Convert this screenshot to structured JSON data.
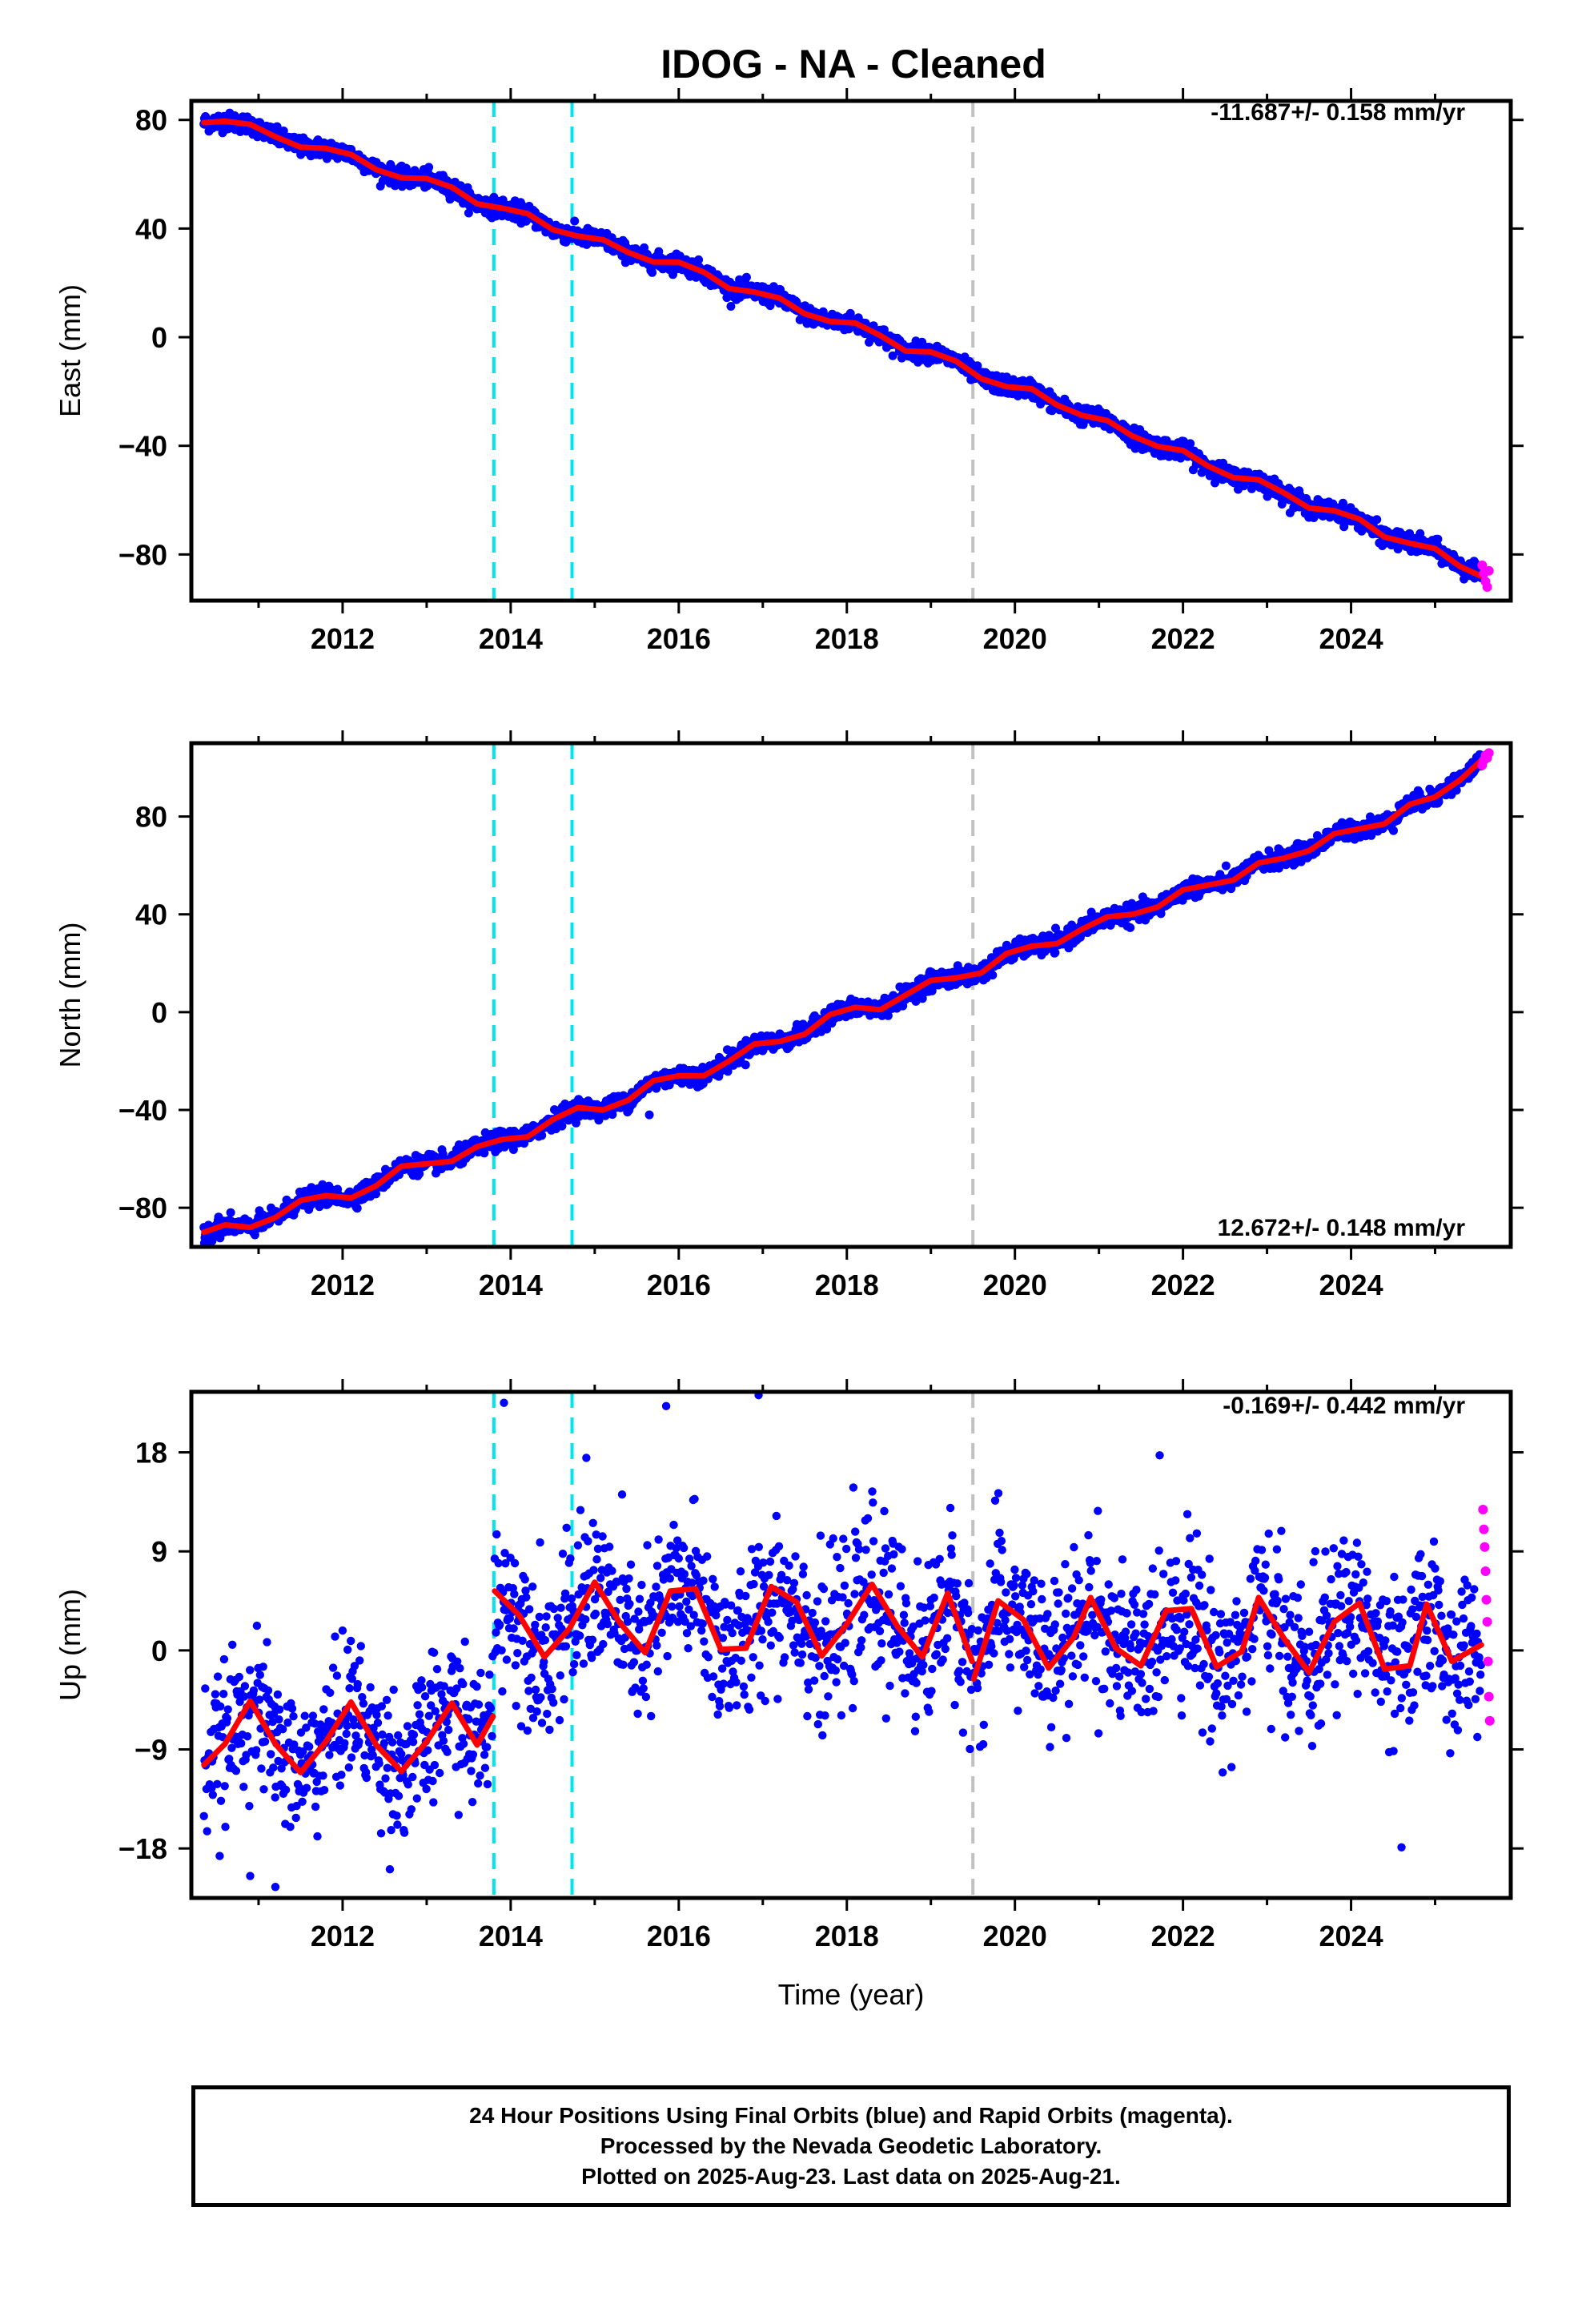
{
  "title": "IDOG  - NA - Cleaned",
  "footer": {
    "line1": "24 Hour Positions Using Final Orbits (blue) and Rapid Orbits (magenta).",
    "line2": "Processed by the Nevada Geodetic Laboratory.",
    "line3": "Plotted on 2025-Aug-23. Last data on 2025-Aug-21."
  },
  "colors": {
    "final": "#0000ff",
    "rapid": "#ff00ff",
    "model": "#ff0000",
    "eq_event": "#00e5ee",
    "equip_event": "#c0c0c0"
  },
  "chart_data": [
    {
      "type": "scatter",
      "component": "east",
      "ylabel": "East (mm)",
      "rate_text": "-11.687+/- 0.158 mm/yr",
      "xlim": [
        2010.2,
        2025.9
      ],
      "ylim": [
        -97,
        87
      ],
      "xticks": [
        2012,
        2014,
        2016,
        2018,
        2020,
        2022,
        2024
      ],
      "yticks": [
        -80,
        -40,
        0,
        40,
        80
      ],
      "ytick_labels": [
        "−80",
        "−40",
        "0",
        "40",
        "80"
      ],
      "events": [
        {
          "x": 2013.8,
          "kind": "eq"
        },
        {
          "x": 2014.73,
          "kind": "eq"
        },
        {
          "x": 2019.5,
          "kind": "equip"
        }
      ],
      "model_line": {
        "x": [
          2010.35,
          2010.6,
          2010.9,
          2011.2,
          2011.5,
          2011.8,
          2012.1,
          2012.4,
          2012.7,
          2013.0,
          2013.3,
          2013.6,
          2013.9,
          2014.2,
          2014.5,
          2014.8,
          2015.1,
          2015.4,
          2015.7,
          2016.0,
          2016.3,
          2016.6,
          2016.9,
          2017.2,
          2017.5,
          2017.8,
          2018.1,
          2018.4,
          2018.7,
          2019.0,
          2019.3,
          2019.6,
          2019.9,
          2020.2,
          2020.5,
          2020.8,
          2021.1,
          2021.4,
          2021.7,
          2022.0,
          2022.3,
          2022.6,
          2022.9,
          2023.2,
          2023.5,
          2023.8,
          2024.1,
          2024.4,
          2024.7,
          2025.0,
          2025.3,
          2025.55
        ],
        "y": [
          79,
          79.5,
          78.4,
          73.8,
          70,
          69.5,
          67.3,
          61.7,
          58.7,
          58.4,
          55.2,
          49.1,
          47.5,
          45.5,
          39.6,
          37.2,
          35.9,
          31.2,
          27.7,
          27.6,
          23.9,
          17.9,
          16.6,
          14.4,
          8.6,
          5.8,
          5.2,
          0.6,
          -5.1,
          -5.4,
          -8.8,
          -15.3,
          -18.2,
          -19,
          -25,
          -28.8,
          -30.7,
          -36.4,
          -40.2,
          -41.7,
          -47.5,
          -51.7,
          -52.5,
          -57.3,
          -62.9,
          -63.9,
          -67,
          -73.6,
          -75.9,
          -77.8,
          -84.5,
          -88
        ]
      },
      "scatter_sd": 1.6,
      "rapid_points": {
        "x": [
          2025.56,
          2025.58,
          2025.6,
          2025.62,
          2025.64
        ],
        "y": [
          -84,
          -87,
          -90,
          -92,
          -86
        ]
      }
    },
    {
      "type": "scatter",
      "component": "north",
      "ylabel": "North (mm)",
      "rate_text": "12.672+/- 0.148 mm/yr",
      "xlim": [
        2010.2,
        2025.9
      ],
      "ylim": [
        -96,
        110
      ],
      "xticks": [
        2012,
        2014,
        2016,
        2018,
        2020,
        2022,
        2024
      ],
      "yticks": [
        -80,
        -40,
        0,
        40,
        80
      ],
      "ytick_labels": [
        "−80",
        "−40",
        "0",
        "40",
        "80"
      ],
      "events": [
        {
          "x": 2013.8,
          "kind": "eq"
        },
        {
          "x": 2014.73,
          "kind": "eq"
        },
        {
          "x": 2019.5,
          "kind": "equip"
        }
      ],
      "model_line": {
        "x": [
          2010.35,
          2010.6,
          2010.9,
          2011.2,
          2011.5,
          2011.8,
          2012.1,
          2012.4,
          2012.7,
          2013.0,
          2013.3,
          2013.6,
          2013.9,
          2014.2,
          2014.5,
          2014.8,
          2015.1,
          2015.4,
          2015.7,
          2016.0,
          2016.3,
          2016.6,
          2016.9,
          2017.2,
          2017.5,
          2017.8,
          2018.1,
          2018.4,
          2018.7,
          2019.0,
          2019.3,
          2019.6,
          2019.9,
          2020.2,
          2020.5,
          2020.8,
          2021.1,
          2021.4,
          2021.7,
          2022.0,
          2022.3,
          2022.6,
          2022.9,
          2023.2,
          2023.5,
          2023.8,
          2024.1,
          2024.4,
          2024.7,
          2025.0,
          2025.3,
          2025.55
        ],
        "y": [
          -90,
          -87,
          -88,
          -84,
          -77,
          -75,
          -76,
          -71,
          -63,
          -62,
          -61,
          -55,
          -52,
          -51,
          -44,
          -39,
          -40,
          -36,
          -28,
          -26,
          -26,
          -20,
          -13,
          -12,
          -9,
          -1,
          2,
          1,
          7,
          13,
          14,
          16,
          24,
          27,
          28,
          34,
          39,
          40,
          43,
          50,
          52,
          54,
          61,
          63,
          66,
          73,
          75,
          77,
          85,
          88,
          95,
          103
        ]
      },
      "scatter_sd": 1.8,
      "outliers": [
        {
          "x": 2015.65,
          "y": -42
        }
      ],
      "rapid_points": {
        "x": [
          2025.56,
          2025.58,
          2025.6,
          2025.62,
          2025.64
        ],
        "y": [
          101,
          103,
          105,
          104,
          106
        ]
      }
    },
    {
      "type": "scatter",
      "component": "up",
      "ylabel": "Up (mm)",
      "xlabel": "Time (year)",
      "rate_text": "-0.169+/- 0.442 mm/yr",
      "xlim": [
        2010.2,
        2025.9
      ],
      "ylim": [
        -22.5,
        23.5
      ],
      "xticks": [
        2012,
        2014,
        2016,
        2018,
        2020,
        2022,
        2024
      ],
      "yticks": [
        -18,
        -9,
        0,
        9,
        18
      ],
      "ytick_labels": [
        "−18",
        "−9",
        "0",
        "9",
        "18"
      ],
      "events": [
        {
          "x": 2013.8,
          "kind": "eq"
        },
        {
          "x": 2014.73,
          "kind": "eq"
        },
        {
          "x": 2019.5,
          "kind": "equip"
        }
      ],
      "model_segments": [
        {
          "x": [
            2010.35,
            2010.6,
            2010.9,
            2011.2,
            2011.5,
            2011.8,
            2012.1,
            2012.4,
            2012.7,
            2013.0,
            2013.3,
            2013.6,
            2013.79
          ],
          "y": [
            -10.4,
            -8.5,
            -4.6,
            -8.5,
            -11.1,
            -8.3,
            -4.7,
            -8.6,
            -11.0,
            -8.3,
            -4.8,
            -8.6,
            -6.0
          ]
        },
        {
          "x": [
            2013.81,
            2014.1,
            2014.4,
            2014.7,
            2015.0,
            2015.3,
            2015.6,
            2015.9,
            2016.2,
            2016.5,
            2016.8,
            2017.1,
            2017.4,
            2017.7,
            2018.0,
            2018.3,
            2018.6,
            2018.9,
            2019.2,
            2019.49
          ],
          "y": [
            5.4,
            3.2,
            -0.6,
            2.0,
            6.2,
            2.5,
            -0.2,
            5.4,
            5.6,
            0.1,
            0.2,
            5.8,
            4.4,
            -0.5,
            2.4,
            6.0,
            2.2,
            -0.6,
            5.2,
            -1.0
          ]
        },
        {
          "x": [
            2019.51,
            2019.8,
            2020.1,
            2020.4,
            2020.7,
            2020.9,
            2021.2,
            2021.5,
            2021.8,
            2022.1,
            2022.4,
            2022.7,
            2022.9,
            2023.2,
            2023.5,
            2023.8,
            2024.1,
            2024.4,
            2024.7,
            2024.9,
            2025.2,
            2025.55
          ],
          "y": [
            -2.6,
            4.5,
            2.8,
            -1.6,
            1.2,
            4.8,
            0.2,
            -1.4,
            3.6,
            3.8,
            -1.5,
            -0.1,
            4.8,
            1.1,
            -2.0,
            2.6,
            4.3,
            -1.7,
            -1.4,
            4.2,
            -1.0,
            0.5
          ]
        }
      ],
      "scatter_sd": 3.6,
      "outliers": [
        {
          "x": 2013.92,
          "y": 22.5
        },
        {
          "x": 2015.85,
          "y": 22.2
        },
        {
          "x": 2016.95,
          "y": 23.2
        },
        {
          "x": 2014.9,
          "y": 17.5
        },
        {
          "x": 2024.6,
          "y": -17.9
        },
        {
          "x": 2010.9,
          "y": -20.5
        },
        {
          "x": 2011.2,
          "y": -21.5
        }
      ],
      "rapid_points": {
        "x": [
          2025.57,
          2025.58,
          2025.59,
          2025.6,
          2025.61,
          2025.62,
          2025.63,
          2025.64,
          2025.65
        ],
        "y": [
          12.8,
          11,
          9.4,
          7.2,
          4.6,
          2.6,
          -1,
          -4.2,
          -6.4
        ]
      }
    }
  ]
}
